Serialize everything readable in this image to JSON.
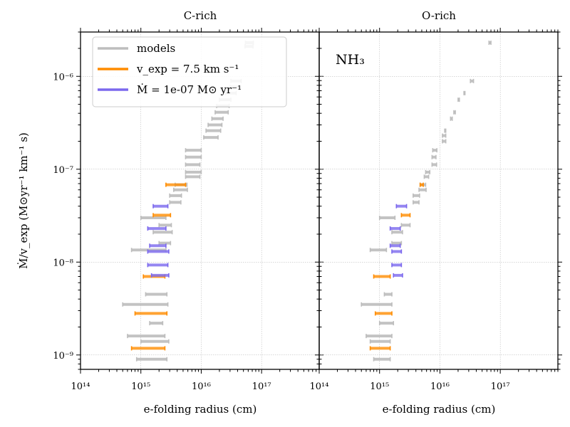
{
  "chart_data": {
    "type": "scatter",
    "ylabel": "Ṁ/v_exp (M⊙yr⁻¹ km⁻¹ s)",
    "xlabel": "e-folding radius (cm)",
    "xscale": "log",
    "yscale": "log",
    "xlim": [
      100000000000000.0,
      9e+17
    ],
    "ylim": [
      7e-10,
      3e-06
    ],
    "x_ticks": [
      {
        "value": 100000000000000.0,
        "label": "10¹⁴"
      },
      {
        "value": 1000000000000000.0,
        "label": "10¹⁵"
      },
      {
        "value": 1e+16,
        "label": "10¹⁶"
      },
      {
        "value": 1e+17,
        "label": "10¹⁷"
      }
    ],
    "y_ticks": [
      {
        "value": 1e-09,
        "label": "10⁻⁹"
      },
      {
        "value": 1e-08,
        "label": "10⁻⁸"
      },
      {
        "value": 1e-07,
        "label": "10⁻⁷"
      },
      {
        "value": 1e-06,
        "label": "10⁻⁶"
      }
    ],
    "legend": {
      "position": "top-left",
      "entries": [
        {
          "label": "models",
          "color": "#bdbdbd"
        },
        {
          "label": "v_exp = 7.5 km s⁻¹",
          "color": "#ff8c00"
        },
        {
          "label": "Ṁ = 1e-07 M⊙ yr⁻¹",
          "color": "#7b68ee"
        }
      ]
    },
    "panels": [
      {
        "title": "C-rich",
        "annotation": "",
        "series": [
          {
            "name": "models",
            "color": "#bdbdbd",
            "segments": [
              [
                850000000000000.0,
                2700000000000000.0,
                9e-10
              ],
              [
                1000000000000000.0,
                2900000000000000.0,
                1.4e-09
              ],
              [
                600000000000000.0,
                2500000000000000.0,
                1.6e-09
              ],
              [
                1400000000000000.0,
                2300000000000000.0,
                2.2e-09
              ],
              [
                500000000000000.0,
                2800000000000000.0,
                3.5e-09
              ],
              [
                1200000000000000.0,
                2700000000000000.0,
                4.5e-09
              ],
              [
                700000000000000.0,
                2600000000000000.0,
                1.35e-08
              ],
              [
                2000000000000000.0,
                3100000000000000.0,
                1.6e-08
              ],
              [
                1600000000000000.0,
                3300000000000000.0,
                2.1e-08
              ],
              [
                2000000000000000.0,
                3200000000000000.0,
                2.5e-08
              ],
              [
                1000000000000000.0,
                2600000000000000.0,
                3e-08
              ],
              [
                3000000000000000.0,
                4600000000000000.0,
                4.4e-08
              ],
              [
                3000000000000000.0,
                4700000000000000.0,
                5.2e-08
              ],
              [
                3500000000000000.0,
                5900000000000000.0,
                6e-08
              ],
              [
                3700000000000000.0,
                5800000000000000.0,
                6.8e-08
              ],
              [
                5500000000000000.0,
                9500000000000000.0,
                8.3e-08
              ],
              [
                5500000000000000.0,
                1e+16,
                9.3e-08
              ],
              [
                5500000000000000.0,
                9500000000000000.0,
                1.12e-07
              ],
              [
                5500000000000000.0,
                1e+16,
                1.35e-07
              ],
              [
                5500000000000000.0,
                1e+16,
                1.6e-07
              ],
              [
                1.1e+16,
                1.9e+16,
                2.2e-07
              ],
              [
                1.2e+16,
                2.1e+16,
                2.6e-07
              ],
              [
                1.3e+16,
                2.2e+16,
                3e-07
              ],
              [
                1.5e+16,
                2.3e+16,
                3.5e-07
              ],
              [
                1.7e+16,
                2.8e+16,
                4.1e-07
              ],
              [
                1.8e+16,
                2.9e+16,
                4.8e-07
              ],
              [
                2e+16,
                3.1e+16,
                5.6e-07
              ],
              [
                2.5e+16,
                3.8e+16,
                6.6e-07
              ],
              [
                3e+16,
                4.4e+16,
                7.7e-07
              ],
              [
                3.1e+16,
                4.6e+16,
                8.9e-07
              ],
              [
                5.3e+16,
                7.2e+16,
                2.1e-06
              ],
              [
                5.4e+16,
                7.3e+16,
                2.3e-06
              ]
            ]
          },
          {
            "name": "v_exp = 7.5 km s⁻¹",
            "color": "#ff8c00",
            "segments": [
              [
                700000000000000.0,
                2500000000000000.0,
                1.18e-09
              ],
              [
                800000000000000.0,
                2700000000000000.0,
                2.8e-09
              ],
              [
                1100000000000000.0,
                2500000000000000.0,
                7e-09
              ],
              [
                1600000000000000.0,
                3100000000000000.0,
                3.2e-08
              ],
              [
                2600000000000000.0,
                5500000000000000.0,
                6.8e-08
              ]
            ]
          },
          {
            "name": "Ṁ = 1e-07 M⊙ yr⁻¹",
            "color": "#7b68ee",
            "segments": [
              [
                1500000000000000.0,
                2900000000000000.0,
                7.2e-09
              ],
              [
                1300000000000000.0,
                2800000000000000.0,
                9.3e-09
              ],
              [
                1300000000000000.0,
                2900000000000000.0,
                1.3e-08
              ],
              [
                1400000000000000.0,
                2600000000000000.0,
                1.5e-08
              ],
              [
                1300000000000000.0,
                2600000000000000.0,
                2.3e-08
              ],
              [
                1600000000000000.0,
                2800000000000000.0,
                4e-08
              ]
            ]
          }
        ]
      },
      {
        "title": "O-rich",
        "annotation": "NH₃",
        "series": [
          {
            "name": "models",
            "color": "#bdbdbd",
            "segments": [
              [
                800000000000000.0,
                1500000000000000.0,
                9e-10
              ],
              [
                700000000000000.0,
                1500000000000000.0,
                1.4e-09
              ],
              [
                600000000000000.0,
                1600000000000000.0,
                1.6e-09
              ],
              [
                1000000000000000.0,
                1700000000000000.0,
                2.2e-09
              ],
              [
                500000000000000.0,
                1600000000000000.0,
                3.5e-09
              ],
              [
                1200000000000000.0,
                1600000000000000.0,
                4.5e-09
              ],
              [
                700000000000000.0,
                1300000000000000.0,
                1.35e-08
              ],
              [
                1600000000000000.0,
                2300000000000000.0,
                1.6e-08
              ],
              [
                1600000000000000.0,
                2400000000000000.0,
                2.1e-08
              ],
              [
                2300000000000000.0,
                3200000000000000.0,
                2.5e-08
              ],
              [
                1000000000000000.0,
                1800000000000000.0,
                3e-08
              ],
              [
                3600000000000000.0,
                4500000000000000.0,
                4.4e-08
              ],
              [
                3600000000000000.0,
                4600000000000000.0,
                5.2e-08
              ],
              [
                4500000000000000.0,
                5900000000000000.0,
                6e-08
              ],
              [
                4700000000000000.0,
                5800000000000000.0,
                6.8e-08
              ],
              [
                5500000000000000.0,
                6500000000000000.0,
                8.3e-08
              ],
              [
                5800000000000000.0,
                6800000000000000.0,
                9.3e-08
              ],
              [
                7400000000000000.0,
                8800000000000000.0,
                1.12e-07
              ],
              [
                7400000000000000.0,
                8600000000000000.0,
                1.35e-07
              ],
              [
                7600000000000000.0,
                8900000000000000.0,
                1.6e-07
              ],
              [
                1.1e+16,
                1.25e+16,
                2e-07
              ],
              [
                1.1e+16,
                1.25e+16,
                2.3e-07
              ],
              [
                1.2e+16,
                1.25e+16,
                2.6e-07
              ],
              [
                1.5e+16,
                1.6e+16,
                3.5e-07
              ],
              [
                1.7e+16,
                1.8e+16,
                4.1e-07
              ],
              [
                2e+16,
                2.1e+16,
                5.6e-07
              ],
              [
                2.5e+16,
                2.6e+16,
                6.6e-07
              ],
              [
                3.2e+16,
                3.6e+16,
                8.9e-07
              ],
              [
                6.5e+16,
                7e+16,
                2.3e-06
              ]
            ]
          },
          {
            "name": "v_exp = 7.5 km s⁻¹",
            "color": "#ff8c00",
            "segments": [
              [
                700000000000000.0,
                1500000000000000.0,
                1.18e-09
              ],
              [
                850000000000000.0,
                1600000000000000.0,
                2.8e-09
              ],
              [
                800000000000000.0,
                1500000000000000.0,
                7e-09
              ],
              [
                2300000000000000.0,
                3200000000000000.0,
                3.2e-08
              ],
              [
                4700000000000000.0,
                5300000000000000.0,
                6.8e-08
              ]
            ]
          },
          {
            "name": "Ṁ = 1e-07 M⊙ yr⁻¹",
            "color": "#7b68ee",
            "segments": [
              [
                1700000000000000.0,
                2400000000000000.0,
                7.2e-09
              ],
              [
                1600000000000000.0,
                2300000000000000.0,
                9.3e-09
              ],
              [
                1600000000000000.0,
                2300000000000000.0,
                1.3e-08
              ],
              [
                1500000000000000.0,
                2200000000000000.0,
                1.5e-08
              ],
              [
                1500000000000000.0,
                2200000000000000.0,
                2.3e-08
              ],
              [
                1900000000000000.0,
                2800000000000000.0,
                4e-08
              ]
            ]
          }
        ]
      }
    ]
  }
}
